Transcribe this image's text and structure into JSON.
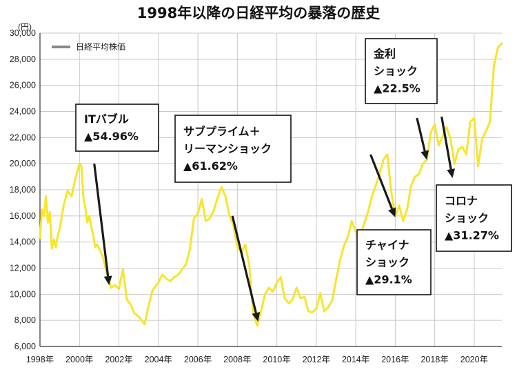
{
  "chart_data": {
    "type": "line",
    "title": "1998年以降の日経平均の暴落の歴史",
    "ylabel_unit": "(円)",
    "legend": [
      "日経平均株価"
    ],
    "ylim": [
      6000,
      30000
    ],
    "xlim": [
      1998,
      2021.4
    ],
    "y_ticks": [
      6000,
      8000,
      10000,
      12000,
      14000,
      16000,
      18000,
      20000,
      22000,
      24000,
      26000,
      28000,
      30000
    ],
    "y_tick_labels": [
      "6,000",
      "8,000",
      "10,000",
      "12,000",
      "14,000",
      "16,000",
      "18,000",
      "20,000",
      "22,000",
      "24,000",
      "26,000",
      "28,000",
      "30,000"
    ],
    "x_ticks": [
      1998,
      2000,
      2002,
      2004,
      2006,
      2008,
      2010,
      2012,
      2014,
      2016,
      2018,
      2020
    ],
    "x_tick_labels": [
      "1998年",
      "2000年",
      "2002年",
      "2004年",
      "2006年",
      "2008年",
      "2010年",
      "2012年",
      "2014年",
      "2016年",
      "2018年",
      "2020年"
    ],
    "grid": true,
    "colors": {
      "line": "#f7e52b",
      "arrow": "#1a1a1a",
      "grid": "#c8c8c8",
      "legend": "#888888"
    },
    "series": [
      {
        "name": "日経平均株価",
        "x": [
          1998.0,
          1998.1,
          1998.2,
          1998.3,
          1998.4,
          1998.5,
          1998.6,
          1998.7,
          1998.8,
          1998.9,
          1999.0,
          1999.2,
          1999.4,
          1999.6,
          1999.8,
          2000.0,
          2000.1,
          2000.2,
          2000.3,
          2000.4,
          2000.5,
          2000.6,
          2000.7,
          2000.8,
          2000.9,
          2001.0,
          2001.2,
          2001.4,
          2001.6,
          2001.8,
          2002.0,
          2002.2,
          2002.4,
          2002.6,
          2002.8,
          2003.0,
          2003.2,
          2003.3,
          2003.5,
          2003.7,
          2004.0,
          2004.2,
          2004.4,
          2004.6,
          2004.8,
          2005.0,
          2005.2,
          2005.4,
          2005.6,
          2005.8,
          2006.0,
          2006.2,
          2006.4,
          2006.6,
          2006.8,
          2007.0,
          2007.2,
          2007.4,
          2007.6,
          2007.8,
          2008.0,
          2008.2,
          2008.4,
          2008.6,
          2008.8,
          2009.0,
          2009.2,
          2009.4,
          2009.6,
          2009.8,
          2010.0,
          2010.2,
          2010.4,
          2010.6,
          2010.8,
          2011.0,
          2011.2,
          2011.4,
          2011.6,
          2011.8,
          2012.0,
          2012.2,
          2012.4,
          2012.6,
          2012.8,
          2013.0,
          2013.2,
          2013.4,
          2013.6,
          2013.8,
          2014.0,
          2014.2,
          2014.4,
          2014.6,
          2014.8,
          2015.0,
          2015.2,
          2015.4,
          2015.6,
          2015.8,
          2016.0,
          2016.2,
          2016.4,
          2016.6,
          2016.8,
          2017.0,
          2017.2,
          2017.4,
          2017.6,
          2017.8,
          2018.0,
          2018.2,
          2018.4,
          2018.6,
          2018.8,
          2019.0,
          2019.2,
          2019.4,
          2019.6,
          2019.8,
          2020.0,
          2020.2,
          2020.4,
          2020.6,
          2020.8,
          2021.0,
          2021.2,
          2021.4
        ],
        "values": [
          14300,
          16500,
          16000,
          17500,
          15500,
          16300,
          13500,
          14200,
          13600,
          14500,
          15000,
          16800,
          17900,
          17500,
          18900,
          20000,
          19800,
          17400,
          16600,
          15500,
          16000,
          15200,
          14500,
          13600,
          13800,
          13500,
          12800,
          11500,
          10500,
          10700,
          10400,
          11900,
          9600,
          9200,
          8500,
          8300,
          7900,
          7700,
          9100,
          10300,
          10900,
          11500,
          11200,
          11000,
          11300,
          11500,
          11900,
          12300,
          13500,
          15800,
          16200,
          17300,
          15600,
          15800,
          16400,
          17400,
          18200,
          17500,
          16000,
          15300,
          13600,
          13200,
          13800,
          12300,
          8600,
          7600,
          8700,
          10000,
          10500,
          10200,
          10900,
          11300,
          9700,
          9300,
          9600,
          10500,
          9700,
          9800,
          8700,
          8600,
          8900,
          10100,
          8700,
          9000,
          9500,
          11100,
          12600,
          13700,
          14400,
          15600,
          14800,
          14300,
          15300,
          16200,
          17400,
          18300,
          19200,
          20300,
          20700,
          17800,
          16000,
          16800,
          15600,
          16500,
          18300,
          19000,
          19200,
          20000,
          20300,
          22400,
          23000,
          21400,
          22100,
          22800,
          21900,
          20000,
          21100,
          21300,
          20700,
          23200,
          23500,
          19800,
          21900,
          22500,
          23200,
          27500,
          28900,
          29200
        ]
      }
    ],
    "annotations": [
      {
        "lines": [
          "ITバブル",
          "▲54.96%"
        ]
      },
      {
        "lines": [
          "サブプライム＋",
          "リーマンショック",
          "▲61.62%"
        ]
      },
      {
        "lines": [
          "金利",
          "ショック",
          "▲22.5%"
        ]
      },
      {
        "lines": [
          "チャイナ",
          "ショック",
          "▲29.1%"
        ]
      },
      {
        "lines": [
          "コロナ",
          "ショック",
          "▲31.27%"
        ]
      }
    ]
  }
}
